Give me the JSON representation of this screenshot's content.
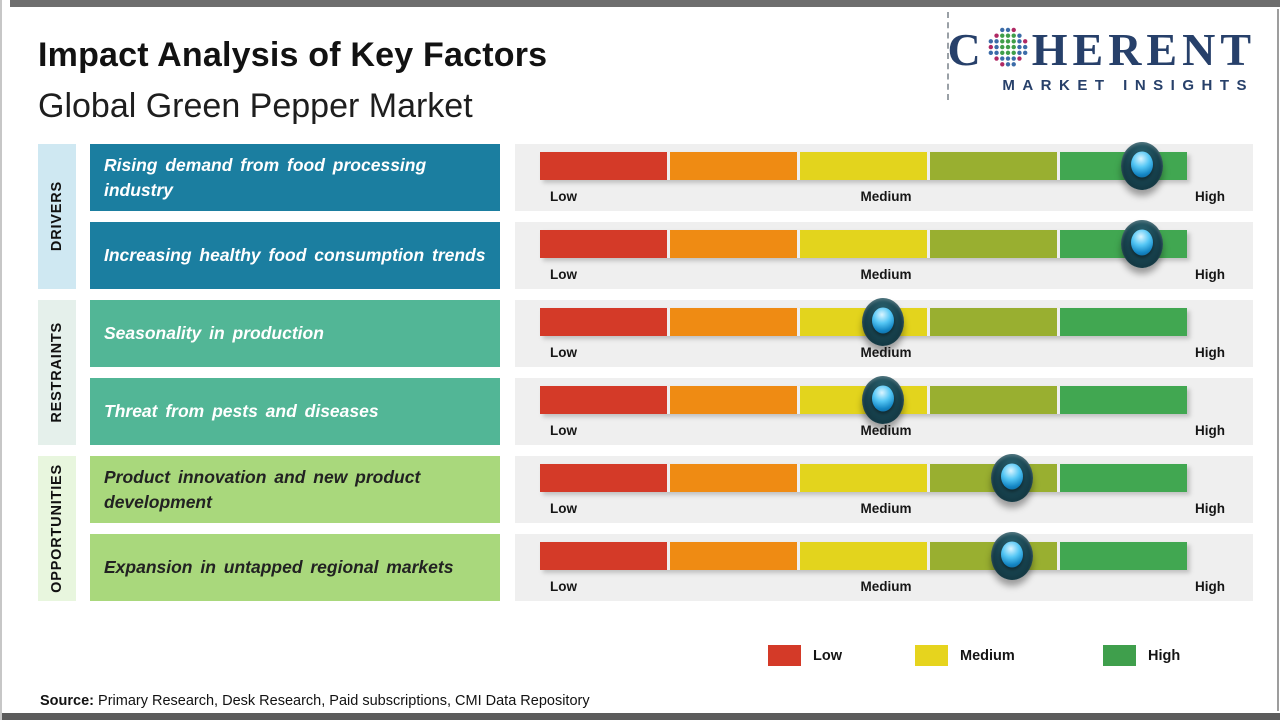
{
  "header": {
    "title": "Impact Analysis of Key Factors",
    "subtitle": "Global Green Pepper Market"
  },
  "logo": {
    "name_prefix": "C",
    "name_suffix": "HERENT",
    "tagline": "MARKET INSIGHTS",
    "brand_color": "#27406a"
  },
  "scale": {
    "low": "Low",
    "medium": "Medium",
    "high": "High"
  },
  "groups": [
    {
      "label": "DRIVERS",
      "factors": [
        {
          "text": "Rising demand from food processing industry",
          "impact": 0.93,
          "impact_level": "High"
        },
        {
          "text": "Increasing healthy food consumption trends",
          "impact": 0.93,
          "impact_level": "High"
        }
      ]
    },
    {
      "label": "RESTRAINTS",
      "factors": [
        {
          "text": "Seasonality in production",
          "impact": 0.53,
          "impact_level": "Medium"
        },
        {
          "text": "Threat from pests and diseases",
          "impact": 0.53,
          "impact_level": "Medium"
        }
      ]
    },
    {
      "label": "OPPORTUNITIES",
      "factors": [
        {
          "text": "Product innovation and new product development",
          "impact": 0.73,
          "impact_level": "Medium-High"
        },
        {
          "text": "Expansion in untapped regional markets",
          "impact": 0.73,
          "impact_level": "Medium-High"
        }
      ]
    }
  ],
  "legend": [
    {
      "label": "Low",
      "color": "#d43a28"
    },
    {
      "label": "Medium",
      "color": "#e6d41e"
    },
    {
      "label": "High",
      "color": "#3f9f4c"
    }
  ],
  "segment_colors": [
    "#d43a28",
    "#ef8b13",
    "#e3d41d",
    "#99af30",
    "#41a751"
  ],
  "source": {
    "label": "Source:",
    "text": " Primary Research, Desk Research, Paid subscriptions, CMI Data Repository"
  },
  "chart_data": {
    "type": "table",
    "title": "Impact Analysis of Key Factors",
    "subtitle": "Global Green Pepper Market",
    "scale_axis": [
      "Low",
      "Medium",
      "High"
    ],
    "legend_entries": [
      "Low",
      "Medium",
      "High"
    ],
    "legend_position": "bottom",
    "rows": [
      {
        "category": "Drivers",
        "factor": "Rising demand from food processing industry",
        "impact_position": 0.93,
        "impact_level": "High"
      },
      {
        "category": "Drivers",
        "factor": "Increasing healthy food consumption trends",
        "impact_position": 0.93,
        "impact_level": "High"
      },
      {
        "category": "Restraints",
        "factor": "Seasonality in production",
        "impact_position": 0.53,
        "impact_level": "Medium"
      },
      {
        "category": "Restraints",
        "factor": "Threat from pests and diseases",
        "impact_position": 0.53,
        "impact_level": "Medium"
      },
      {
        "category": "Opportunities",
        "factor": "Product innovation and new product development",
        "impact_position": 0.73,
        "impact_level": "Medium-High"
      },
      {
        "category": "Opportunities",
        "factor": "Expansion in untapped regional markets",
        "impact_position": 0.73,
        "impact_level": "Medium-High"
      }
    ]
  }
}
